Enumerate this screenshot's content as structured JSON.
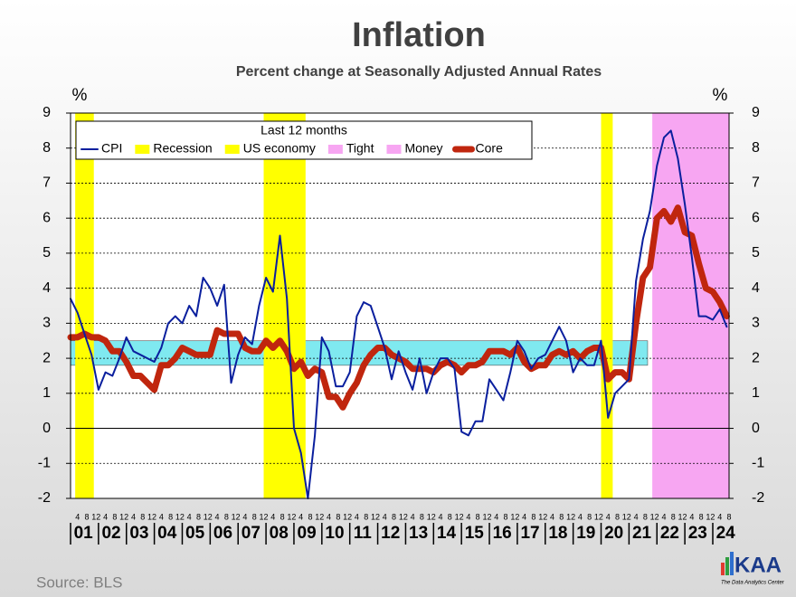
{
  "chart_data": {
    "type": "line",
    "title": "Inflation",
    "subtitle": "Percent change at Seasonally Adjusted  Annual Rates",
    "y_unit": "%",
    "legend_title": "Last 12 months",
    "source": "Source:  BLS",
    "logo": "KAA",
    "logo_tagline": "The Data Analytics Center",
    "years": [
      "01",
      "02",
      "03",
      "04",
      "05",
      "06",
      "07",
      "08",
      "09",
      "10",
      "11",
      "12",
      "13",
      "14",
      "15",
      "16",
      "17",
      "18",
      "19",
      "20",
      "21",
      "22",
      "23",
      "24"
    ],
    "month_labels": [
      4,
      8,
      12
    ],
    "xlim": [
      "01-1",
      "24-8"
    ],
    "ylim": [
      -2,
      9
    ],
    "yticks": [
      -2,
      -1,
      0,
      1,
      2,
      3,
      4,
      5,
      6,
      7,
      8,
      9
    ],
    "grid": true,
    "target_band": {
      "color": "#7fe9f0",
      "range": [
        1.8,
        2.5
      ],
      "span": [
        "01-1",
        "21-9"
      ]
    },
    "bands": [
      {
        "labels": [
          "Recession",
          "US economy"
        ],
        "color": "#ffff00",
        "spans": [
          [
            "01-3",
            "01-11"
          ],
          [
            "07-12",
            "09-6"
          ],
          [
            "20-1",
            "20-6"
          ]
        ]
      },
      {
        "labels": [
          "Tight",
          "Money"
        ],
        "color": "#f7a6f2",
        "spans": [
          [
            "21-11",
            "24-8"
          ]
        ]
      }
    ],
    "x": [
      "01-1",
      "01-4",
      "01-7",
      "01-10",
      "02-1",
      "02-4",
      "02-7",
      "02-10",
      "03-1",
      "03-4",
      "03-7",
      "03-10",
      "04-1",
      "04-4",
      "04-7",
      "04-10",
      "05-1",
      "05-4",
      "05-7",
      "05-10",
      "06-1",
      "06-4",
      "06-7",
      "06-10",
      "07-1",
      "07-4",
      "07-7",
      "07-10",
      "08-1",
      "08-4",
      "08-7",
      "08-10",
      "09-1",
      "09-4",
      "09-7",
      "09-10",
      "10-1",
      "10-4",
      "10-7",
      "10-10",
      "11-1",
      "11-4",
      "11-7",
      "11-10",
      "12-1",
      "12-4",
      "12-7",
      "12-10",
      "13-1",
      "13-4",
      "13-7",
      "13-10",
      "14-1",
      "14-4",
      "14-7",
      "14-10",
      "15-1",
      "15-4",
      "15-7",
      "15-10",
      "16-1",
      "16-4",
      "16-7",
      "16-10",
      "17-1",
      "17-4",
      "17-7",
      "17-10",
      "18-1",
      "18-4",
      "18-7",
      "18-10",
      "19-1",
      "19-4",
      "19-7",
      "19-10",
      "20-1",
      "20-4",
      "20-7",
      "20-10",
      "21-1",
      "21-4",
      "21-7",
      "21-10",
      "22-1",
      "22-4",
      "22-7",
      "22-10",
      "23-1",
      "23-4",
      "23-7",
      "23-10",
      "24-1",
      "24-4",
      "24-7"
    ],
    "series": [
      {
        "name": "CPI",
        "color": "#0a1f9e",
        "width": 2,
        "values": [
          3.7,
          3.3,
          2.7,
          2.1,
          1.1,
          1.6,
          1.5,
          2.0,
          2.6,
          2.2,
          2.1,
          2.0,
          1.9,
          2.3,
          3.0,
          3.2,
          3.0,
          3.5,
          3.2,
          4.3,
          4.0,
          3.5,
          4.1,
          1.3,
          2.1,
          2.6,
          2.4,
          3.5,
          4.3,
          3.9,
          5.5,
          3.7,
          0.0,
          -0.7,
          -2.0,
          -0.2,
          2.6,
          2.2,
          1.2,
          1.2,
          1.6,
          3.2,
          3.6,
          3.5,
          2.9,
          2.3,
          1.4,
          2.2,
          1.6,
          1.1,
          2.0,
          1.0,
          1.6,
          2.0,
          2.0,
          1.7,
          -0.1,
          -0.2,
          0.2,
          0.2,
          1.4,
          1.1,
          0.8,
          1.6,
          2.5,
          2.2,
          1.7,
          2.0,
          2.1,
          2.5,
          2.9,
          2.5,
          1.6,
          2.0,
          1.8,
          1.8,
          2.5,
          0.3,
          1.0,
          1.2,
          1.4,
          4.2,
          5.4,
          6.2,
          7.5,
          8.3,
          8.5,
          7.7,
          6.4,
          4.9,
          3.2,
          3.2,
          3.1,
          3.4,
          2.9
        ]
      },
      {
        "name": "Core",
        "color": "#c0260e",
        "width": 7,
        "values": [
          2.6,
          2.6,
          2.7,
          2.6,
          2.6,
          2.5,
          2.2,
          2.2,
          1.9,
          1.5,
          1.5,
          1.3,
          1.1,
          1.8,
          1.8,
          2.0,
          2.3,
          2.2,
          2.1,
          2.1,
          2.1,
          2.8,
          2.7,
          2.7,
          2.7,
          2.3,
          2.2,
          2.2,
          2.5,
          2.3,
          2.5,
          2.2,
          1.7,
          1.9,
          1.5,
          1.7,
          1.6,
          0.9,
          0.9,
          0.6,
          1.0,
          1.3,
          1.8,
          2.1,
          2.3,
          2.3,
          2.1,
          2.0,
          1.9,
          1.7,
          1.7,
          1.7,
          1.6,
          1.8,
          1.9,
          1.8,
          1.6,
          1.8,
          1.8,
          1.9,
          2.2,
          2.2,
          2.2,
          2.1,
          2.3,
          1.9,
          1.7,
          1.8,
          1.8,
          2.1,
          2.2,
          2.1,
          2.2,
          2.0,
          2.2,
          2.3,
          2.3,
          1.4,
          1.6,
          1.6,
          1.4,
          3.0,
          4.3,
          4.6,
          6.0,
          6.2,
          5.9,
          6.3,
          5.6,
          5.5,
          4.7,
          4.0,
          3.9,
          3.6,
          3.2
        ]
      }
    ]
  }
}
